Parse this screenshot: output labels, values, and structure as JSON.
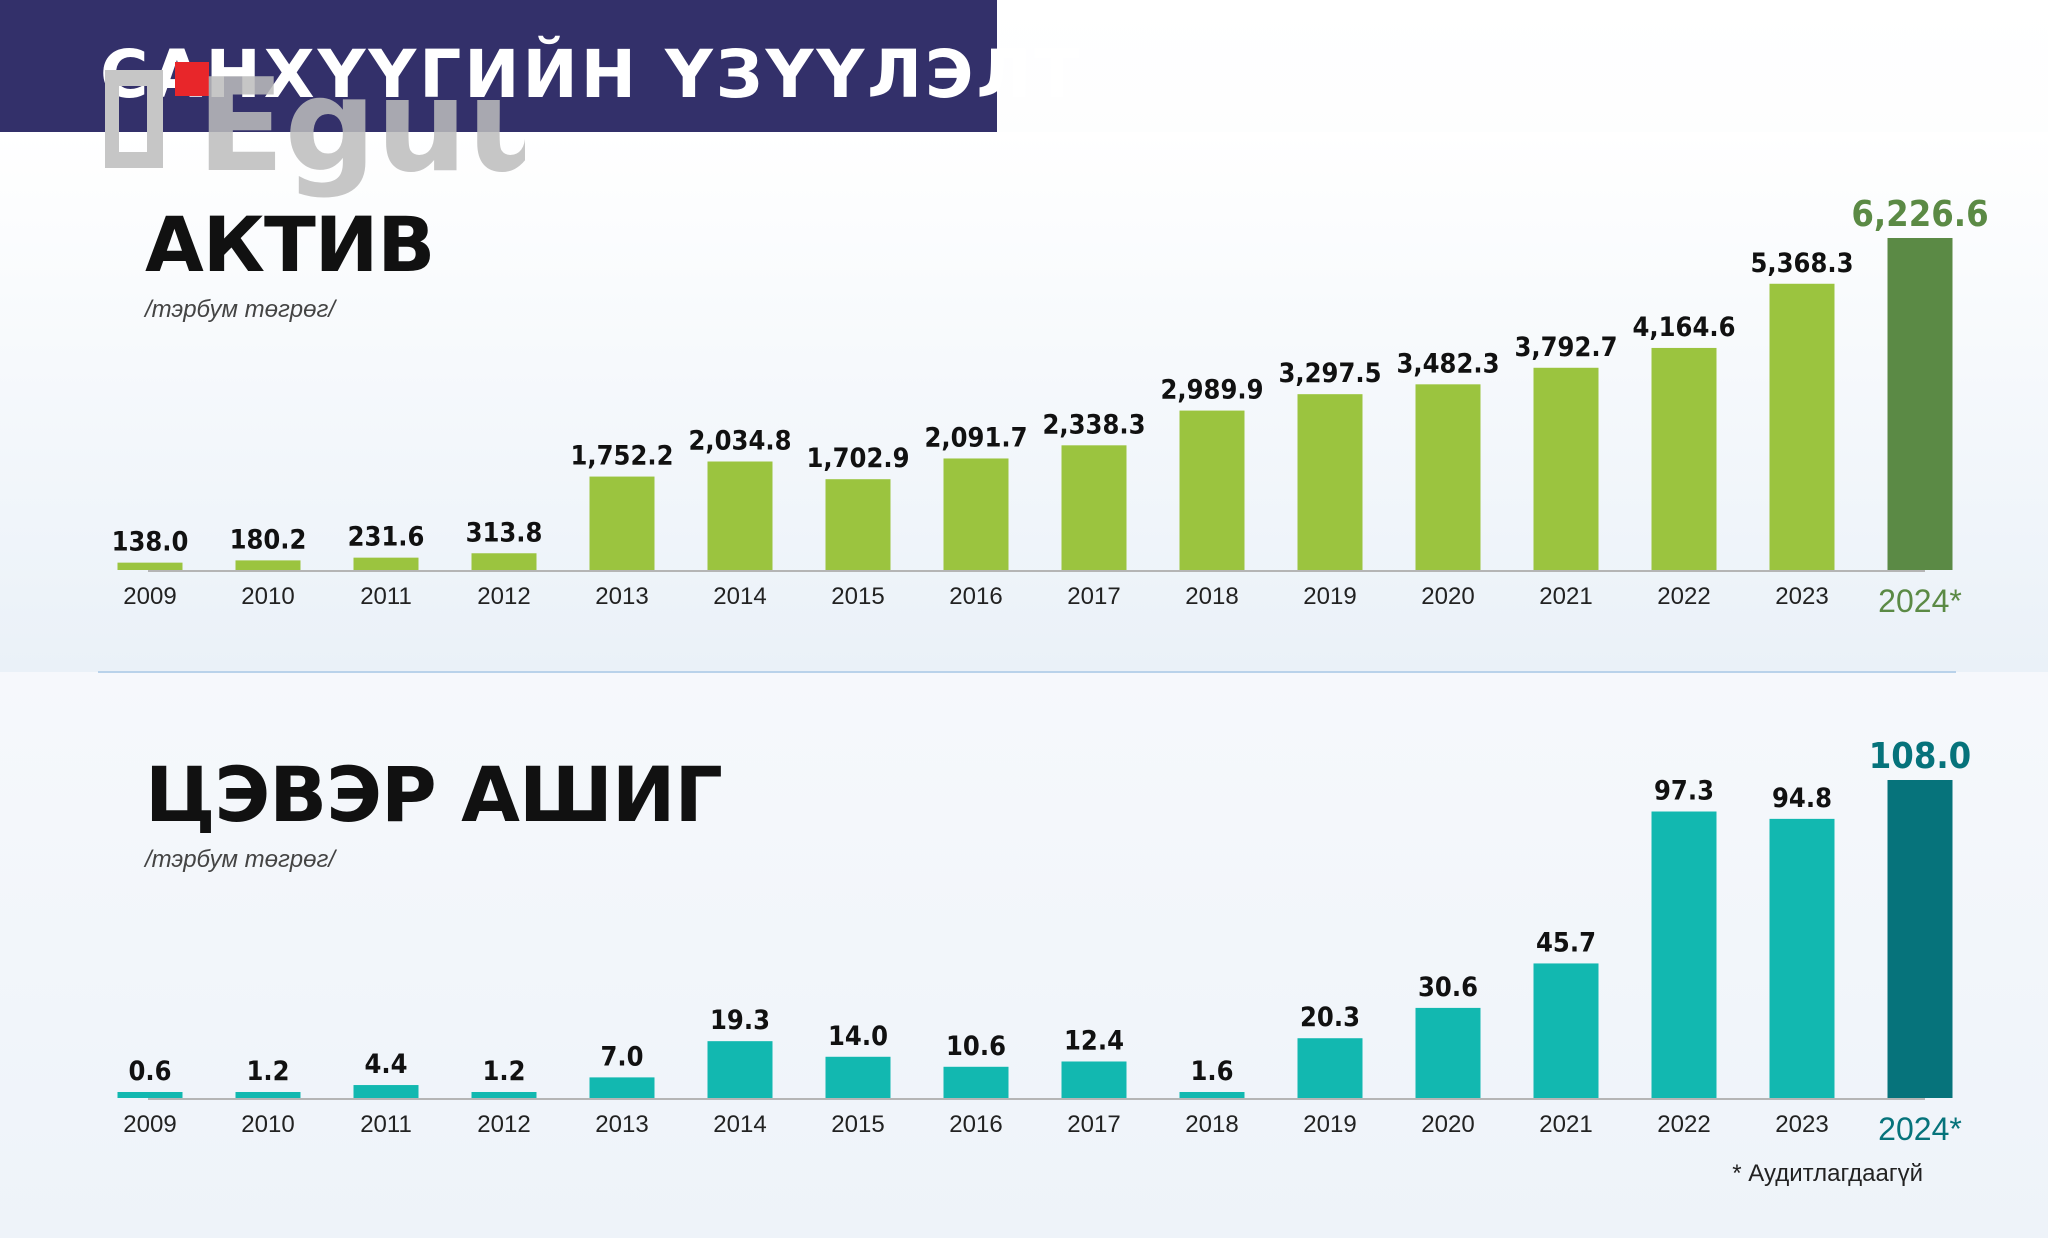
{
  "header": {
    "title": "САНХҮҮГИЙН ҮЗҮҮЛЭЛТ"
  },
  "logo": {
    "text": "Eguur",
    "accent_color": "#e8262a",
    "color": "#bdbdbd"
  },
  "colors": {
    "header_bg": "#33306a",
    "assets_bar": "#9bc43f",
    "assets_highlight": "#5b8a45",
    "profit_bar": "#12b8b0",
    "profit_highlight": "#06737b"
  },
  "chart_data": [
    {
      "type": "bar",
      "title": "АКТИВ",
      "ylabel": "/тэрбум төгрөг/",
      "categories": [
        "2009",
        "2010",
        "2011",
        "2012",
        "2013",
        "2014",
        "2015",
        "2016",
        "2017",
        "2018",
        "2019",
        "2020",
        "2021",
        "2022",
        "2023",
        "2024*"
      ],
      "values": [
        138.0,
        180.2,
        231.6,
        313.8,
        1752.2,
        2034.8,
        1702.9,
        2091.7,
        2338.3,
        2989.9,
        3297.5,
        3482.3,
        3792.7,
        4164.6,
        5368.3,
        6226.6
      ],
      "labels": [
        "138.0",
        "180.2",
        "231.6",
        "313.8",
        "1,752.2",
        "2,034.8",
        "1,702.9",
        "2,091.7",
        "2,338.3",
        "2,989.9",
        "3,297.5",
        "3,482.3",
        "3,792.7",
        "4,164.6",
        "5,368.3",
        "6,226.6"
      ],
      "highlight_index": 15,
      "ylim": [
        0,
        6226.6
      ],
      "grid": false,
      "legend": "none"
    },
    {
      "type": "bar",
      "title": "ЦЭВЭР АШИГ",
      "ylabel": "/тэрбум төгрөг/",
      "categories": [
        "2009",
        "2010",
        "2011",
        "2012",
        "2013",
        "2014",
        "2015",
        "2016",
        "2017",
        "2018",
        "2019",
        "2020",
        "2021",
        "2022",
        "2023",
        "2024*"
      ],
      "values": [
        0.6,
        1.2,
        4.4,
        1.2,
        7.0,
        19.3,
        14.0,
        10.6,
        12.4,
        1.6,
        20.3,
        30.6,
        45.7,
        97.3,
        94.8,
        108.0
      ],
      "labels": [
        "0.6",
        "1.2",
        "4.4",
        "1.2",
        "7.0",
        "19.3",
        "14.0",
        "10.6",
        "12.4",
        "1.6",
        "20.3",
        "30.6",
        "45.7",
        "97.3",
        "94.8",
        "108.0"
      ],
      "highlight_index": 15,
      "ylim": [
        0,
        108.0
      ],
      "grid": false,
      "legend": "none"
    }
  ],
  "footnote": "* Аудитлагдаагүй"
}
